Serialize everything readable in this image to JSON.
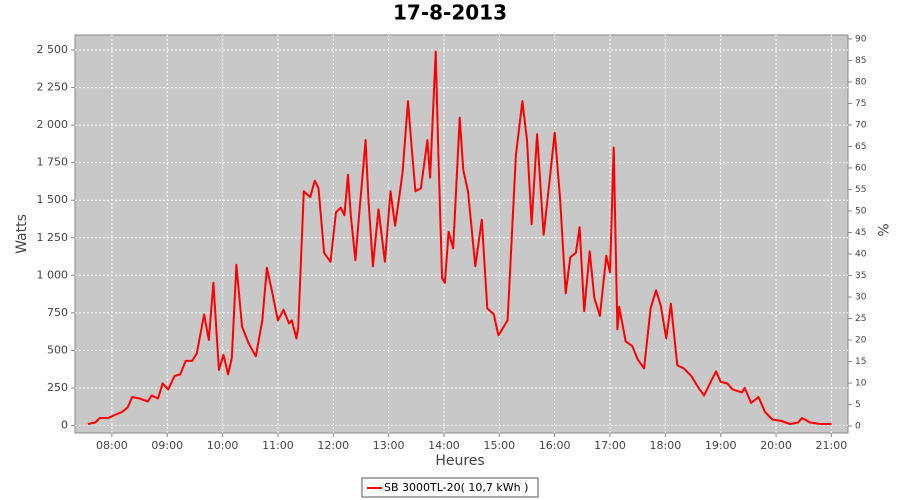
{
  "chart_data": {
    "type": "line",
    "title": "17-8-2013",
    "x_label": "Heures",
    "y_label": "Watts",
    "y2_label": "%",
    "x": [
      "07:34",
      "07:42",
      "07:47",
      "07:56",
      "08:03",
      "08:11",
      "08:17",
      "08:22",
      "08:30",
      "08:39",
      "08:43",
      "08:50",
      "08:55",
      "09:01",
      "09:08",
      "09:14",
      "09:20",
      "09:27",
      "09:32",
      "09:40",
      "09:45",
      "09:50",
      "09:56",
      "10:01",
      "10:06",
      "10:10",
      "10:15",
      "10:21",
      "10:28",
      "10:36",
      "10:43",
      "10:48",
      "10:54",
      "11:00",
      "11:06",
      "11:12",
      "11:15",
      "11:20",
      "11:22",
      "11:28",
      "11:35",
      "11:40",
      "11:44",
      "11:50",
      "11:57",
      "12:03",
      "12:08",
      "12:12",
      "12:16",
      "12:19",
      "12:24",
      "12:28",
      "12:35",
      "12:38",
      "12:43",
      "12:49",
      "12:56",
      "13:02",
      "13:07",
      "13:11",
      "13:15",
      "13:21",
      "13:25",
      "13:29",
      "13:35",
      "13:42",
      "13:45",
      "13:51",
      "13:54",
      "13:58",
      "14:01",
      "14:05",
      "14:10",
      "14:17",
      "14:21",
      "14:26",
      "14:34",
      "14:41",
      "14:47",
      "14:54",
      "14:59",
      "15:09",
      "15:18",
      "15:25",
      "15:30",
      "15:35",
      "15:41",
      "15:48",
      "15:54",
      "16:00",
      "16:06",
      "16:12",
      "16:17",
      "16:23",
      "16:27",
      "16:32",
      "16:38",
      "16:43",
      "16:49",
      "16:56",
      "17:00",
      "17:04",
      "17:08",
      "17:10",
      "17:17",
      "17:24",
      "17:30",
      "17:37",
      "17:44",
      "17:50",
      "17:55",
      "18:01",
      "18:06",
      "18:13",
      "18:20",
      "18:28",
      "18:36",
      "18:42",
      "18:49",
      "18:55",
      "19:00",
      "19:07",
      "19:13",
      "19:23",
      "19:26",
      "19:33",
      "19:41",
      "19:48",
      "19:56",
      "20:06",
      "20:15",
      "20:24",
      "20:28",
      "20:37",
      "20:48",
      "21:00"
    ],
    "series": [
      {
        "name": "SB 3000TL-20( 10,7 kWh )",
        "color": "#ff0000",
        "values": [
          10,
          20,
          50,
          50,
          70,
          90,
          120,
          190,
          180,
          160,
          200,
          180,
          280,
          240,
          330,
          340,
          430,
          430,
          480,
          740,
          570,
          950,
          370,
          470,
          340,
          450,
          1070,
          660,
          550,
          460,
          700,
          1050,
          880,
          700,
          770,
          680,
          700,
          580,
          650,
          1560,
          1520,
          1630,
          1580,
          1150,
          1090,
          1420,
          1450,
          1400,
          1670,
          1400,
          1100,
          1400,
          1900,
          1520,
          1060,
          1440,
          1090,
          1560,
          1330,
          1500,
          1680,
          2160,
          1850,
          1560,
          1580,
          1900,
          1650,
          2490,
          1800,
          980,
          950,
          1290,
          1180,
          2050,
          1700,
          1560,
          1060,
          1370,
          780,
          740,
          600,
          700,
          1800,
          2160,
          1900,
          1340,
          1940,
          1270,
          1600,
          1950,
          1500,
          880,
          1120,
          1150,
          1320,
          760,
          1160,
          850,
          730,
          1130,
          1020,
          1850,
          640,
          790,
          560,
          530,
          440,
          380,
          780,
          900,
          800,
          580,
          810,
          400,
          380,
          330,
          250,
          200,
          290,
          360,
          290,
          280,
          240,
          220,
          250,
          150,
          190,
          90,
          40,
          30,
          10,
          20,
          50,
          20,
          10,
          10
        ]
      }
    ],
    "xlim": [
      "07:20",
      "21:18"
    ],
    "xticks": [
      "08:00",
      "09:00",
      "10:00",
      "11:00",
      "12:00",
      "13:00",
      "14:00",
      "15:00",
      "16:00",
      "17:00",
      "18:00",
      "19:00",
      "20:00",
      "21:00"
    ],
    "ylim": [
      -50,
      2600
    ],
    "yticks": [
      0,
      250,
      500,
      750,
      {
        "value": 1000,
        "label": "1 000"
      },
      {
        "value": 1250,
        "label": "1 250"
      },
      {
        "value": 1500,
        "label": "1 500"
      },
      {
        "value": 1750,
        "label": "1 750"
      },
      {
        "value": 2000,
        "label": "2 000"
      },
      {
        "value": 2250,
        "label": "2 250"
      },
      {
        "value": 2500,
        "label": "2 500"
      }
    ],
    "y2lim": [
      -1.6,
      90.9
    ],
    "y2ticks": [
      0,
      5,
      10,
      15,
      20,
      25,
      30,
      35,
      40,
      45,
      50,
      55,
      60,
      65,
      70,
      75,
      80,
      85,
      90
    ],
    "grid": true,
    "legend": "bottom"
  }
}
